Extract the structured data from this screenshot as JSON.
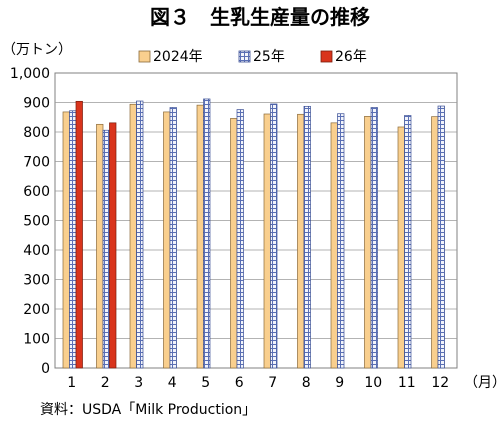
{
  "chart_data": {
    "type": "bar",
    "title": "図３　生乳生産量の推移",
    "ylabel": "（万トン）",
    "xlabel": "（月）",
    "ylim": [
      0,
      1000
    ],
    "ytick_labels": [
      "0",
      "100",
      "200",
      "300",
      "400",
      "500",
      "600",
      "700",
      "800",
      "900",
      "1,000"
    ],
    "categories": [
      "1",
      "2",
      "3",
      "4",
      "5",
      "6",
      "7",
      "8",
      "9",
      "10",
      "11",
      "12"
    ],
    "series": [
      {
        "name": "2024年",
        "color": "#f9cf8e",
        "values": [
          868,
          826,
          894,
          868,
          891,
          846,
          861,
          860,
          831,
          853,
          817,
          852
        ]
      },
      {
        "name": "25年",
        "color": "#c9d1ea",
        "pattern": "grid",
        "values": [
          872,
          806,
          905,
          883,
          912,
          876,
          895,
          887,
          862,
          883,
          856,
          888
        ]
      },
      {
        "name": "26年",
        "color": "#d9341c",
        "values": [
          904,
          831,
          null,
          null,
          null,
          null,
          null,
          null,
          null,
          null,
          null,
          null
        ]
      }
    ],
    "grid": true,
    "legend_position": "top-center"
  },
  "source": "資料：USDA「Milk Production」"
}
